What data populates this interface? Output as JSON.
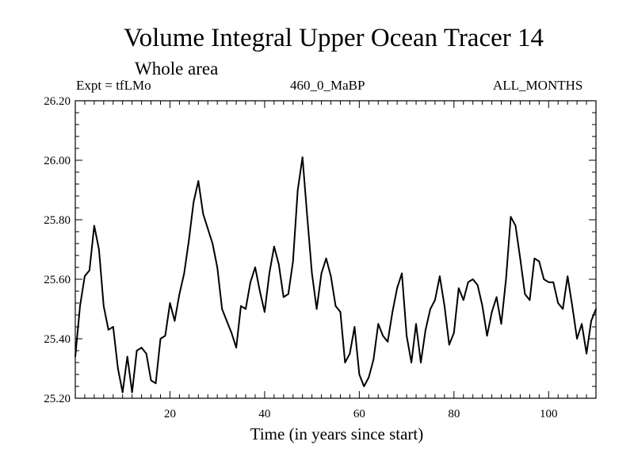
{
  "chart_data": {
    "type": "line",
    "title": "Volume Integral Upper Ocean Tracer 14",
    "subtitle": "Whole area",
    "expt_label": "Expt = tfLMo",
    "run_label": "460_0_MaBP",
    "period_label": "ALL_MONTHS",
    "xlabel": "Time (in years since start)",
    "ylabel": "",
    "xlim": [
      0,
      110
    ],
    "ylim": [
      25.2,
      26.2
    ],
    "xticks": [
      20,
      40,
      60,
      80,
      100
    ],
    "xtick_labels": [
      "20",
      "40",
      "60",
      "80",
      "100"
    ],
    "yticks": [
      25.2,
      25.4,
      25.6,
      25.8,
      26.0,
      26.2
    ],
    "ytick_labels": [
      "25.20",
      "25.40",
      "25.60",
      "25.80",
      "26.00",
      "26.20"
    ],
    "series": [
      {
        "name": "Volume Integral Upper Ocean Tracer 14",
        "x": [
          0,
          1,
          2,
          3,
          4,
          5,
          6,
          7,
          8,
          9,
          10,
          11,
          12,
          13,
          14,
          15,
          16,
          17,
          18,
          19,
          20,
          21,
          22,
          23,
          24,
          25,
          26,
          27,
          28,
          29,
          30,
          31,
          32,
          33,
          34,
          35,
          36,
          37,
          38,
          39,
          40,
          41,
          42,
          43,
          44,
          45,
          46,
          47,
          48,
          49,
          50,
          51,
          52,
          53,
          54,
          55,
          56,
          57,
          58,
          59,
          60,
          61,
          62,
          63,
          64,
          65,
          66,
          67,
          68,
          69,
          70,
          71,
          72,
          73,
          74,
          75,
          76,
          77,
          78,
          79,
          80,
          81,
          82,
          83,
          84,
          85,
          86,
          87,
          88,
          89,
          90,
          91,
          92,
          93,
          94,
          95,
          96,
          97,
          98,
          99,
          100,
          101,
          102,
          103,
          104,
          105,
          106,
          107,
          108,
          109,
          110
        ],
        "values": [
          25.34,
          25.51,
          25.61,
          25.63,
          25.78,
          25.7,
          25.51,
          25.43,
          25.44,
          25.3,
          25.22,
          25.34,
          25.22,
          25.36,
          25.37,
          25.35,
          25.26,
          25.25,
          25.4,
          25.41,
          25.52,
          25.46,
          25.55,
          25.62,
          25.73,
          25.86,
          25.93,
          25.82,
          25.77,
          25.72,
          25.64,
          25.5,
          25.46,
          25.42,
          25.37,
          25.51,
          25.5,
          25.59,
          25.64,
          25.56,
          25.49,
          25.62,
          25.71,
          25.65,
          25.54,
          25.55,
          25.66,
          25.9,
          26.01,
          25.81,
          25.62,
          25.5,
          25.62,
          25.67,
          25.61,
          25.51,
          25.49,
          25.32,
          25.35,
          25.44,
          25.28,
          25.24,
          25.27,
          25.33,
          25.45,
          25.41,
          25.39,
          25.49,
          25.57,
          25.62,
          25.41,
          25.32,
          25.45,
          25.32,
          25.43,
          25.5,
          25.53,
          25.61,
          25.51,
          25.38,
          25.42,
          25.57,
          25.53,
          25.59,
          25.6,
          25.58,
          25.51,
          25.41,
          25.49,
          25.54,
          25.45,
          25.6,
          25.81,
          25.78,
          25.67,
          25.55,
          25.53,
          25.67,
          25.66,
          25.6,
          25.59,
          25.59,
          25.52,
          25.5,
          25.61,
          25.51,
          25.4,
          25.45,
          25.35,
          25.46,
          25.5
        ],
        "color": "#000000"
      }
    ],
    "grid": false,
    "legend": "none"
  }
}
